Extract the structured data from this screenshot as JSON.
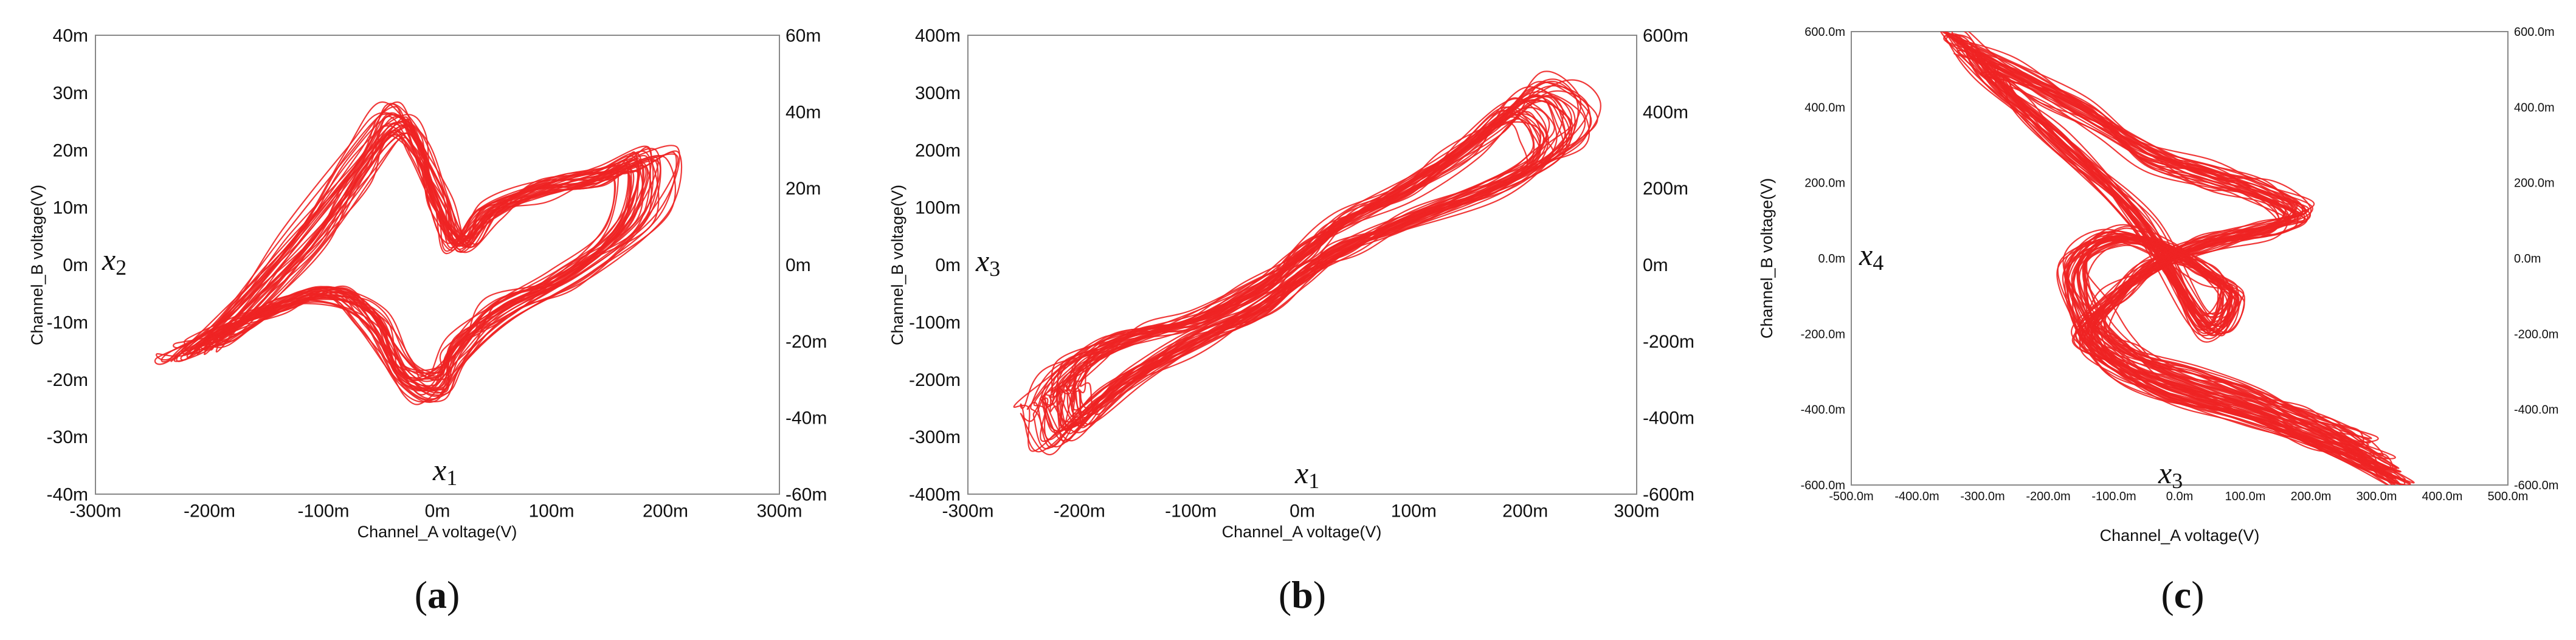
{
  "chart_data": [
    {
      "type": "line",
      "panel_label": "a",
      "xlabel": "Channel_A voltage(V)",
      "ylabel": "Channel_B voltage(V)",
      "x_variable": "x",
      "x_subscript": "1",
      "y_variable": "x",
      "y_subscript": "2",
      "xlim": [
        -0.3,
        0.3
      ],
      "ylim": [
        -0.04,
        0.04
      ],
      "x_ticks": [
        "-300m",
        "-200m",
        "-100m",
        "0m",
        "100m",
        "200m",
        "300m"
      ],
      "y_ticks": [
        "40m",
        "30m",
        "20m",
        "10m",
        "0m",
        "-10m",
        "-20m",
        "-30m",
        "-40m"
      ],
      "right_ticks": [
        "60m",
        "40m",
        "20m",
        "0m",
        "-20m",
        "-40m",
        "-60m"
      ],
      "grid": false,
      "series": [
        {
          "x": [
            -0.22,
            -0.18,
            -0.12,
            -0.07,
            -0.04,
            -0.02,
            0.0,
            0.02,
            0.05,
            0.1,
            0.15,
            0.19,
            0.18,
            0.12,
            0.06,
            0.02,
            0.0,
            -0.03,
            -0.06,
            -0.1,
            -0.15,
            -0.2,
            -0.22
          ],
          "y": [
            -0.015,
            -0.008,
            0.005,
            0.018,
            0.026,
            0.022,
            0.012,
            0.004,
            0.01,
            0.014,
            0.016,
            0.019,
            0.008,
            -0.002,
            -0.008,
            -0.015,
            -0.022,
            -0.02,
            -0.01,
            -0.005,
            -0.008,
            -0.013,
            -0.015
          ]
        }
      ]
    },
    {
      "type": "line",
      "panel_label": "b",
      "xlabel": "Channel_A voltage(V)",
      "ylabel": "Channel_B voltage(V)",
      "x_variable": "x",
      "x_subscript": "1",
      "y_variable": "x",
      "y_subscript": "3",
      "xlim": [
        -0.3,
        0.3
      ],
      "ylim": [
        -0.4,
        0.4
      ],
      "x_ticks": [
        "-300m",
        "-200m",
        "-100m",
        "0m",
        "100m",
        "200m",
        "300m"
      ],
      "y_ticks": [
        "400m",
        "300m",
        "200m",
        "100m",
        "0m",
        "-100m",
        "-200m",
        "-300m",
        "-400m"
      ],
      "right_ticks": [
        "600m",
        "400m",
        "200m",
        "0m",
        "-200m",
        "-400m",
        "-600m"
      ],
      "grid": false,
      "series": [
        {
          "x": [
            -0.23,
            -0.21,
            -0.16,
            -0.1,
            -0.04,
            0.0,
            0.04,
            0.1,
            0.16,
            0.21,
            0.24,
            0.23,
            0.18,
            0.1,
            0.04,
            0.0,
            -0.04,
            -0.1,
            -0.17,
            -0.22,
            -0.23
          ],
          "y": [
            -0.24,
            -0.18,
            -0.13,
            -0.1,
            -0.04,
            0.02,
            0.08,
            0.14,
            0.22,
            0.3,
            0.26,
            0.2,
            0.14,
            0.08,
            0.03,
            -0.02,
            -0.08,
            -0.14,
            -0.22,
            -0.3,
            -0.24
          ]
        }
      ]
    },
    {
      "type": "line",
      "panel_label": "c",
      "xlabel": "Channel_A voltage(V)",
      "ylabel": "Channel_B voltage(V)",
      "x_variable": "x",
      "x_subscript": "3",
      "y_variable": "x",
      "y_subscript": "4",
      "xlim": [
        -0.5,
        0.5
      ],
      "ylim": [
        -0.6,
        0.6
      ],
      "x_ticks": [
        "-500.0m",
        "-400.0m",
        "-300.0m",
        "-200.0m",
        "-100.0m",
        "0.0m",
        "100.0m",
        "200.0m",
        "300.0m",
        "400.0m",
        "500.0m"
      ],
      "y_ticks": [
        "600.0m",
        "400.0m",
        "200.0m",
        "0.0m",
        "-200.0m",
        "-400.0m",
        "-600.0m"
      ],
      "right_ticks": [
        "600.0m",
        "400.0m",
        "200.0m",
        "0.0m",
        "-200.0m",
        "-400.0m",
        "-600.0m"
      ],
      "grid": false,
      "series": [
        {
          "x": [
            -0.32,
            -0.24,
            -0.14,
            -0.05,
            0.05,
            0.12,
            0.18,
            0.14,
            0.04,
            -0.04,
            -0.1,
            -0.14,
            -0.08,
            0.02,
            0.12,
            0.2,
            0.26,
            0.3,
            0.32,
            0.22,
            0.1,
            -0.02,
            -0.1,
            -0.14,
            -0.16,
            -0.1,
            -0.02,
            0.04,
            0.08,
            0.04,
            -0.06,
            -0.18,
            -0.28,
            -0.32
          ],
          "y": [
            0.55,
            0.48,
            0.38,
            0.28,
            0.22,
            0.18,
            0.12,
            0.08,
            0.04,
            -0.02,
            -0.1,
            -0.2,
            -0.28,
            -0.34,
            -0.4,
            -0.46,
            -0.5,
            -0.54,
            -0.56,
            -0.48,
            -0.4,
            -0.34,
            -0.26,
            -0.16,
            -0.02,
            0.06,
            0.02,
            -0.04,
            -0.1,
            -0.18,
            0.1,
            0.3,
            0.46,
            0.55
          ]
        }
      ]
    }
  ]
}
